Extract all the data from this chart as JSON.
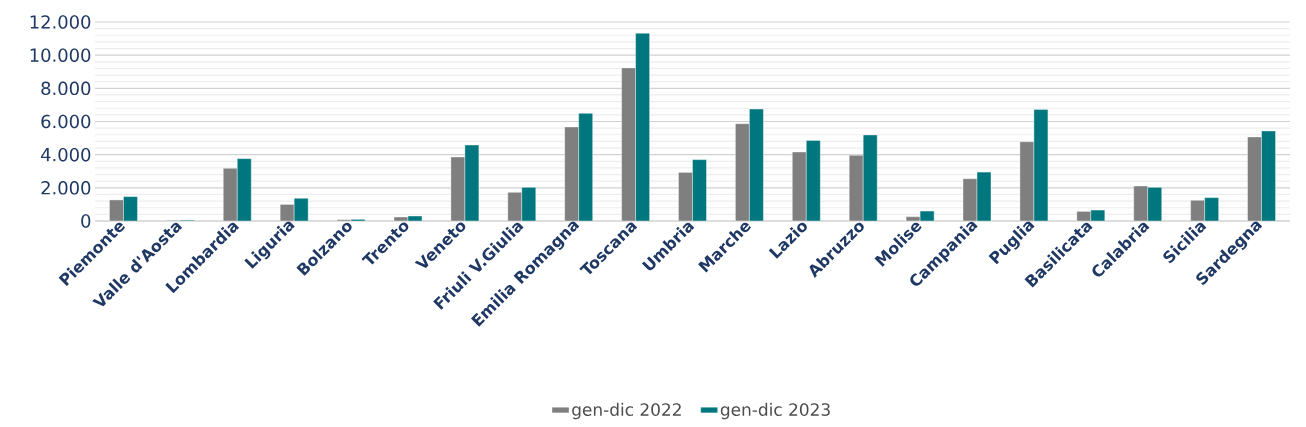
{
  "chart_data": {
    "type": "bar",
    "categories": [
      "Piemonte",
      "Valle d'Aosta",
      "Lombardia",
      "Liguria",
      "Bolzano",
      "Trento",
      "Veneto",
      "Friuli V.Giulia",
      "Emilia Romagna",
      "Toscana",
      "Umbria",
      "Marche",
      "Lazio",
      "Abruzzo",
      "Molise",
      "Campania",
      "Puglia",
      "Basilicata",
      "Calabria",
      "Sicilia",
      "Sardegna"
    ],
    "series": [
      {
        "name": "gen-dic 2022",
        "color": "#7f7f7f",
        "values": [
          1270,
          40,
          3180,
          1000,
          80,
          240,
          3860,
          1730,
          5670,
          9230,
          2930,
          5870,
          4160,
          3960,
          260,
          2550,
          4780,
          580,
          2110,
          1250,
          5070
        ]
      },
      {
        "name": "gen-dic 2023",
        "color": "#00767e",
        "values": [
          1470,
          50,
          3760,
          1370,
          100,
          300,
          4580,
          2030,
          6490,
          11320,
          3700,
          6750,
          4860,
          5190,
          600,
          2950,
          6730,
          660,
          2030,
          1410,
          5430
        ]
      }
    ],
    "ylim": [
      0,
      12000
    ],
    "yticks": [
      {
        "value": 0,
        "label": "0"
      },
      {
        "value": 2000,
        "label": "2.000"
      },
      {
        "value": 4000,
        "label": "4.000"
      },
      {
        "value": 6000,
        "label": "6.000"
      },
      {
        "value": 8000,
        "label": "8.000"
      },
      {
        "value": 10000,
        "label": "10.000"
      },
      {
        "value": 12000,
        "label": "12.000"
      }
    ],
    "grid": "y",
    "legend": "bottom"
  }
}
